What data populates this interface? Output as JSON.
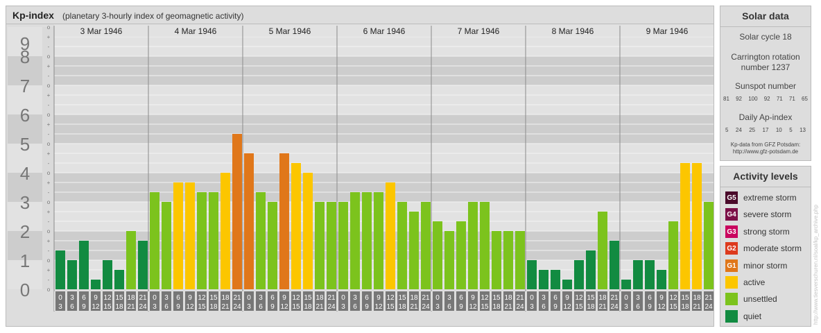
{
  "header": {
    "title": "Kp-index",
    "subtitle": "(planetary 3-hourly index of geomagnetic activity)"
  },
  "chart_data": {
    "type": "bar",
    "title": "Kp-index",
    "subtitle": "(planetary 3-hourly index of geomagnetic activity)",
    "ylim": [
      0,
      9
    ],
    "y_ticks": [
      "0",
      "1",
      "2",
      "3",
      "4",
      "5",
      "6",
      "7",
      "8",
      "9"
    ],
    "y_minor_labels": [
      "o",
      "-",
      "+"
    ],
    "days": [
      "3 Mar 1946",
      "4 Mar 1946",
      "5 Mar 1946",
      "6 Mar 1946",
      "7 Mar 1946",
      "8 Mar 1946",
      "9 Mar 1946"
    ],
    "interval_labels": [
      [
        "0",
        "3"
      ],
      [
        "3",
        "6"
      ],
      [
        "6",
        "9"
      ],
      [
        "9",
        "12"
      ],
      [
        "12",
        "15"
      ],
      [
        "15",
        "18"
      ],
      [
        "18",
        "21"
      ],
      [
        "21",
        "24"
      ]
    ],
    "values": [
      [
        1.333,
        1.0,
        1.667,
        0.333,
        1.0,
        0.667,
        2.0,
        1.667
      ],
      [
        3.333,
        3.0,
        3.667,
        3.667,
        3.333,
        3.333,
        4.0,
        5.333
      ],
      [
        4.667,
        3.333,
        3.0,
        4.667,
        4.333,
        4.0,
        3.0,
        3.0
      ],
      [
        3.0,
        3.333,
        3.333,
        3.333,
        3.667,
        3.0,
        2.667,
        3.0
      ],
      [
        2.333,
        2.0,
        2.333,
        3.0,
        3.0,
        2.0,
        2.0,
        2.0
      ],
      [
        1.0,
        0.667,
        0.667,
        0.333,
        1.0,
        1.333,
        2.667,
        1.667
      ],
      [
        0.333,
        1.0,
        1.0,
        0.667,
        2.333,
        4.333,
        4.333,
        3.0
      ]
    ],
    "level_colors": {
      "quiet": "#128b41",
      "unsettled": "#7cc31d",
      "active": "#fcc600",
      "minor": "#e0771a",
      "moderate": "#dd3a1d",
      "strong": "#c9045e",
      "severe": "#7c0f47",
      "extreme": "#4a0a2a"
    }
  },
  "solar": {
    "title": "Solar data",
    "cycle": "Solar cycle 18",
    "carrington": [
      "Carrington rotation",
      "number 1237"
    ],
    "sunspot_label": "Sunspot number",
    "sunspot_values": [
      "81",
      "92",
      "100",
      "92",
      "71",
      "71",
      "65"
    ],
    "ap_label": "Daily Ap-index",
    "ap_values": [
      "5",
      "24",
      "25",
      "17",
      "10",
      "5",
      "13"
    ],
    "source": [
      "Kp-data from GFZ Potsdam:",
      "http://www.gfz-potsdam.de"
    ]
  },
  "activity": {
    "title": "Activity levels",
    "items": [
      {
        "code": "G5",
        "label": "extreme storm",
        "color": "#4a0a2a"
      },
      {
        "code": "G4",
        "label": "severe storm",
        "color": "#7c0f47"
      },
      {
        "code": "G3",
        "label": "strong storm",
        "color": "#c9045e"
      },
      {
        "code": "G2",
        "label": "moderate storm",
        "color": "#dd3a1d"
      },
      {
        "code": "G1",
        "label": "minor storm",
        "color": "#e0771a"
      },
      {
        "code": "",
        "label": "active",
        "color": "#fcc600"
      },
      {
        "code": "",
        "label": "unsettled",
        "color": "#7cc31d"
      },
      {
        "code": "",
        "label": "quiet",
        "color": "#128b41"
      }
    ]
  },
  "watermark": "http://www.tiesverschuren.nl/soal/kp_archive.php"
}
